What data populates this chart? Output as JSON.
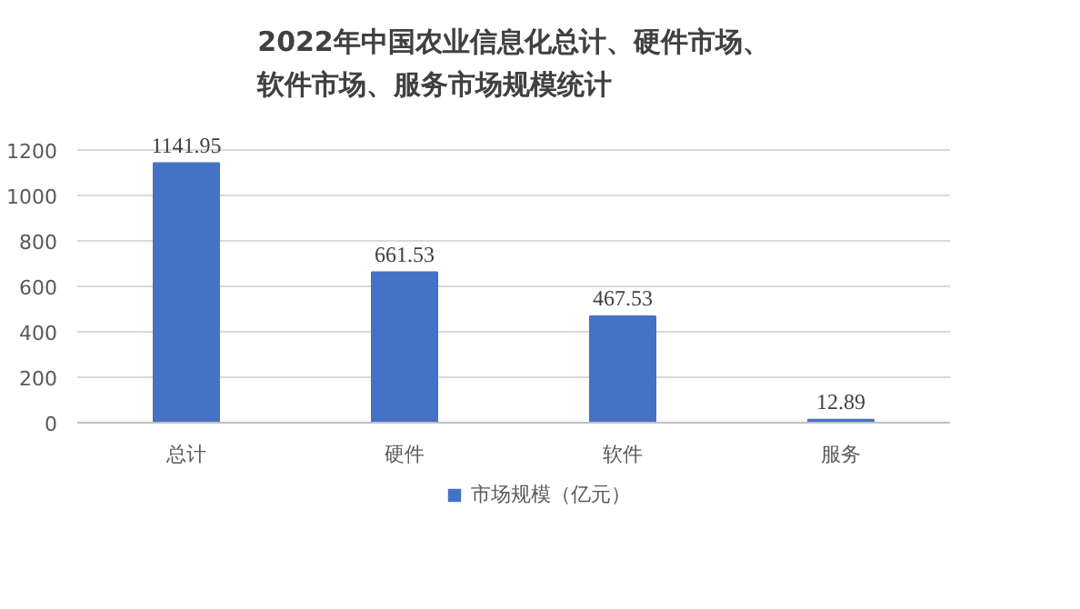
{
  "chart_data": {
    "type": "bar",
    "title": "2022年中国农业信息化总计、硬件市场、软件市场、服务市场规模统计",
    "categories": [
      "总计",
      "硬件",
      "软件",
      "服务"
    ],
    "series": [
      {
        "name": "市场规模（亿元）",
        "color": "#4472c4",
        "values": [
          1141.95,
          661.53,
          467.53,
          12.89
        ]
      }
    ],
    "ylim": [
      0,
      1200
    ],
    "yticks": [
      0,
      200,
      400,
      600,
      800,
      1000,
      1200
    ],
    "grid": "y",
    "legend": "bottom",
    "data_labels": true
  }
}
